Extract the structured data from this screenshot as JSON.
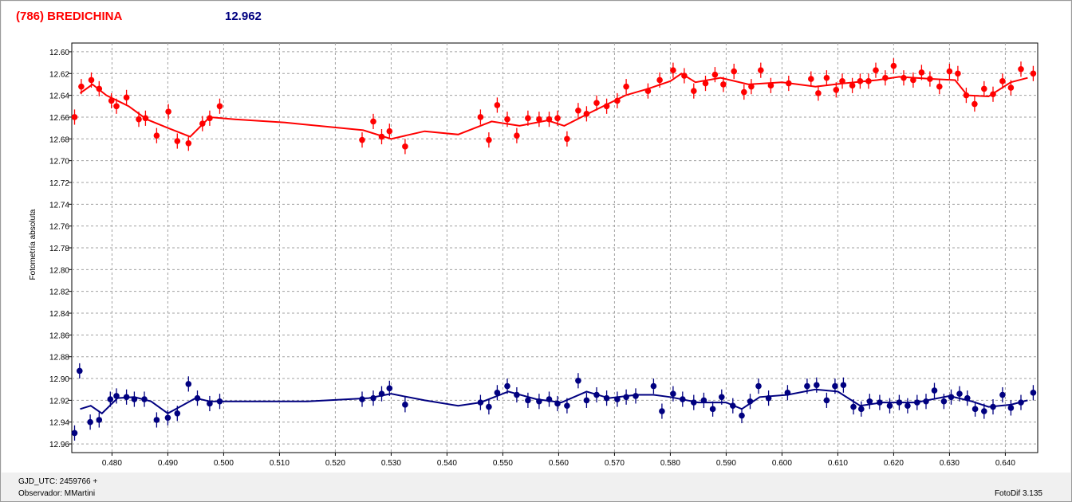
{
  "header": {
    "title": "(786) BREDICHINA",
    "value": "12.962"
  },
  "footer": {
    "gjd_label": "GJD_UTC: 2459766 +",
    "observer_label": "Observador: MMartini",
    "software": "FotoDif 3.135"
  },
  "colors": {
    "series_red": "#ff0000",
    "series_blue": "#000080",
    "grid": "#a0a0a0"
  },
  "chart_data": {
    "type": "scatter",
    "title": "(786) BREDICHINA",
    "xlabel": "",
    "ylabel": "Fotometría absoluta",
    "xlim": [
      0.4728,
      0.6458
    ],
    "ylim": [
      12.968,
      12.592
    ],
    "y_inverted": true,
    "grid": true,
    "xticks": [
      0.48,
      0.49,
      0.5,
      0.51,
      0.52,
      0.53,
      0.54,
      0.55,
      0.56,
      0.57,
      0.58,
      0.59,
      0.6,
      0.61,
      0.62,
      0.63,
      0.64
    ],
    "xtick_labels": [
      "0.480",
      "0.490",
      "0.500",
      "0.510",
      "0.520",
      "0.530",
      "0.540",
      "0.550",
      "0.560",
      "0.570",
      "0.580",
      "0.590",
      "0.600",
      "0.610",
      "0.620",
      "0.630",
      "0.640"
    ],
    "yticks": [
      12.6,
      12.62,
      12.64,
      12.66,
      12.68,
      12.7,
      12.72,
      12.74,
      12.76,
      12.78,
      12.8,
      12.82,
      12.84,
      12.86,
      12.88,
      12.9,
      12.92,
      12.94,
      12.96
    ],
    "ytick_labels": [
      "12.60",
      "12.62",
      "12.64",
      "12.66",
      "12.68",
      "12.70",
      "12.72",
      "12.74",
      "12.76",
      "12.78",
      "12.80",
      "12.82",
      "12.84",
      "12.86",
      "12.88",
      "12.90",
      "12.92",
      "12.94",
      "12.96"
    ],
    "error_bar": 0.007,
    "series": [
      {
        "color": "#ff0000",
        "points": [
          [
            0.4733,
            12.66
          ],
          [
            0.4745,
            12.632
          ],
          [
            0.4763,
            12.626
          ],
          [
            0.4777,
            12.634
          ],
          [
            0.4799,
            12.645
          ],
          [
            0.4808,
            12.65
          ],
          [
            0.4826,
            12.642
          ],
          [
            0.4848,
            12.662
          ],
          [
            0.486,
            12.661
          ],
          [
            0.488,
            12.677
          ],
          [
            0.4901,
            12.655
          ],
          [
            0.4917,
            12.682
          ],
          [
            0.4937,
            12.684
          ],
          [
            0.4962,
            12.666
          ],
          [
            0.4975,
            12.661
          ],
          [
            0.4993,
            12.65
          ],
          [
            0.5248,
            12.681
          ],
          [
            0.5268,
            12.664
          ],
          [
            0.5283,
            12.678
          ],
          [
            0.5297,
            12.673
          ],
          [
            0.5325,
            12.687
          ],
          [
            0.546,
            12.66
          ],
          [
            0.5475,
            12.681
          ],
          [
            0.549,
            12.649
          ],
          [
            0.5508,
            12.662
          ],
          [
            0.5525,
            12.677
          ],
          [
            0.5545,
            12.661
          ],
          [
            0.5565,
            12.662
          ],
          [
            0.5583,
            12.662
          ],
          [
            0.5598,
            12.661
          ],
          [
            0.5615,
            12.68
          ],
          [
            0.5635,
            12.654
          ],
          [
            0.565,
            12.657
          ],
          [
            0.5668,
            12.647
          ],
          [
            0.5686,
            12.65
          ],
          [
            0.5705,
            12.645
          ],
          [
            0.5721,
            12.632
          ],
          [
            0.576,
            12.636
          ],
          [
            0.5781,
            12.626
          ],
          [
            0.5805,
            12.617
          ],
          [
            0.5825,
            12.622
          ],
          [
            0.5842,
            12.636
          ],
          [
            0.5863,
            12.629
          ],
          [
            0.588,
            12.621
          ],
          [
            0.5895,
            12.63
          ],
          [
            0.5914,
            12.618
          ],
          [
            0.5932,
            12.637
          ],
          [
            0.5945,
            12.632
          ],
          [
            0.5962,
            12.617
          ],
          [
            0.598,
            12.631
          ],
          [
            0.6012,
            12.629
          ],
          [
            0.6052,
            12.625
          ],
          [
            0.6065,
            12.638
          ],
          [
            0.608,
            12.624
          ],
          [
            0.6097,
            12.635
          ],
          [
            0.6108,
            12.627
          ],
          [
            0.6126,
            12.631
          ],
          [
            0.614,
            12.627
          ],
          [
            0.6155,
            12.627
          ],
          [
            0.6168,
            12.617
          ],
          [
            0.6185,
            12.624
          ],
          [
            0.62,
            12.613
          ],
          [
            0.6218,
            12.624
          ],
          [
            0.6235,
            12.626
          ],
          [
            0.625,
            12.619
          ],
          [
            0.6265,
            12.625
          ],
          [
            0.6282,
            12.632
          ],
          [
            0.63,
            12.618
          ],
          [
            0.6315,
            12.62
          ],
          [
            0.633,
            12.64
          ],
          [
            0.6345,
            12.648
          ],
          [
            0.6362,
            12.634
          ],
          [
            0.6378,
            12.639
          ],
          [
            0.6395,
            12.627
          ],
          [
            0.641,
            12.633
          ],
          [
            0.6428,
            12.616
          ],
          [
            0.645,
            12.62
          ]
        ],
        "trend": [
          [
            0.4743,
            12.638
          ],
          [
            0.4765,
            12.63
          ],
          [
            0.479,
            12.64
          ],
          [
            0.483,
            12.65
          ],
          [
            0.4862,
            12.662
          ],
          [
            0.49,
            12.67
          ],
          [
            0.494,
            12.678
          ],
          [
            0.4975,
            12.66
          ],
          [
            0.502,
            12.662
          ],
          [
            0.511,
            12.665
          ],
          [
            0.525,
            12.672
          ],
          [
            0.53,
            12.68
          ],
          [
            0.536,
            12.673
          ],
          [
            0.542,
            12.676
          ],
          [
            0.548,
            12.664
          ],
          [
            0.553,
            12.668
          ],
          [
            0.558,
            12.663
          ],
          [
            0.561,
            12.668
          ],
          [
            0.566,
            12.655
          ],
          [
            0.572,
            12.64
          ],
          [
            0.576,
            12.634
          ],
          [
            0.58,
            12.627
          ],
          [
            0.582,
            12.62
          ],
          [
            0.5845,
            12.628
          ],
          [
            0.589,
            12.624
          ],
          [
            0.594,
            12.63
          ],
          [
            0.6,
            12.628
          ],
          [
            0.606,
            12.632
          ],
          [
            0.611,
            12.629
          ],
          [
            0.617,
            12.626
          ],
          [
            0.621,
            12.623
          ],
          [
            0.627,
            12.625
          ],
          [
            0.631,
            12.626
          ],
          [
            0.6332,
            12.64
          ],
          [
            0.637,
            12.641
          ],
          [
            0.641,
            12.628
          ],
          [
            0.644,
            12.624
          ]
        ]
      },
      {
        "color": "#000080",
        "points": [
          [
            0.4733,
            12.95
          ],
          [
            0.4742,
            12.893
          ],
          [
            0.4761,
            12.94
          ],
          [
            0.4777,
            12.938
          ],
          [
            0.4797,
            12.919
          ],
          [
            0.4808,
            12.916
          ],
          [
            0.4826,
            12.917
          ],
          [
            0.484,
            12.919
          ],
          [
            0.4858,
            12.919
          ],
          [
            0.488,
            12.938
          ],
          [
            0.49,
            12.936
          ],
          [
            0.4917,
            12.932
          ],
          [
            0.4937,
            12.905
          ],
          [
            0.4953,
            12.918
          ],
          [
            0.4975,
            12.923
          ],
          [
            0.4993,
            12.921
          ],
          [
            0.5248,
            12.919
          ],
          [
            0.5268,
            12.918
          ],
          [
            0.5283,
            12.914
          ],
          [
            0.5297,
            12.909
          ],
          [
            0.5325,
            12.924
          ],
          [
            0.546,
            12.922
          ],
          [
            0.5475,
            12.926
          ],
          [
            0.549,
            12.913
          ],
          [
            0.5508,
            12.907
          ],
          [
            0.5525,
            12.915
          ],
          [
            0.5545,
            12.92
          ],
          [
            0.5565,
            12.921
          ],
          [
            0.5583,
            12.919
          ],
          [
            0.5598,
            12.923
          ],
          [
            0.5615,
            12.925
          ],
          [
            0.5635,
            12.902
          ],
          [
            0.565,
            12.92
          ],
          [
            0.5668,
            12.915
          ],
          [
            0.5686,
            12.918
          ],
          [
            0.5705,
            12.919
          ],
          [
            0.5721,
            12.917
          ],
          [
            0.5738,
            12.916
          ],
          [
            0.577,
            12.907
          ],
          [
            0.5785,
            12.93
          ],
          [
            0.5805,
            12.914
          ],
          [
            0.5822,
            12.919
          ],
          [
            0.5842,
            12.922
          ],
          [
            0.586,
            12.92
          ],
          [
            0.5876,
            12.928
          ],
          [
            0.5892,
            12.917
          ],
          [
            0.5912,
            12.925
          ],
          [
            0.5928,
            12.934
          ],
          [
            0.5943,
            12.921
          ],
          [
            0.5958,
            12.907
          ],
          [
            0.5976,
            12.918
          ],
          [
            0.601,
            12.913
          ],
          [
            0.6045,
            12.907
          ],
          [
            0.6062,
            12.906
          ],
          [
            0.608,
            12.92
          ],
          [
            0.6095,
            12.907
          ],
          [
            0.611,
            12.906
          ],
          [
            0.6128,
            12.926
          ],
          [
            0.6142,
            12.928
          ],
          [
            0.6157,
            12.921
          ],
          [
            0.6175,
            12.922
          ],
          [
            0.6193,
            12.925
          ],
          [
            0.621,
            12.922
          ],
          [
            0.6225,
            12.925
          ],
          [
            0.6242,
            12.922
          ],
          [
            0.6258,
            12.921
          ],
          [
            0.6273,
            12.911
          ],
          [
            0.629,
            12.921
          ],
          [
            0.6303,
            12.917
          ],
          [
            0.6318,
            12.914
          ],
          [
            0.6332,
            12.918
          ],
          [
            0.6346,
            12.928
          ],
          [
            0.6362,
            12.93
          ],
          [
            0.6378,
            12.926
          ],
          [
            0.6395,
            12.915
          ],
          [
            0.641,
            12.927
          ],
          [
            0.6428,
            12.922
          ],
          [
            0.645,
            12.913
          ]
        ],
        "trend": [
          [
            0.4743,
            12.928
          ],
          [
            0.4762,
            12.925
          ],
          [
            0.4782,
            12.932
          ],
          [
            0.481,
            12.918
          ],
          [
            0.484,
            12.917
          ],
          [
            0.487,
            12.921
          ],
          [
            0.49,
            12.932
          ],
          [
            0.4925,
            12.925
          ],
          [
            0.495,
            12.918
          ],
          [
            0.4975,
            12.921
          ],
          [
            0.505,
            12.921
          ],
          [
            0.515,
            12.921
          ],
          [
            0.526,
            12.918
          ],
          [
            0.53,
            12.914
          ],
          [
            0.536,
            12.92
          ],
          [
            0.542,
            12.925
          ],
          [
            0.546,
            12.922
          ],
          [
            0.551,
            12.912
          ],
          [
            0.556,
            12.919
          ],
          [
            0.5605,
            12.922
          ],
          [
            0.565,
            12.912
          ],
          [
            0.569,
            12.918
          ],
          [
            0.574,
            12.915
          ],
          [
            0.577,
            12.915
          ],
          [
            0.58,
            12.917
          ],
          [
            0.585,
            12.922
          ],
          [
            0.59,
            12.922
          ],
          [
            0.5928,
            12.928
          ],
          [
            0.596,
            12.917
          ],
          [
            0.601,
            12.915
          ],
          [
            0.606,
            12.91
          ],
          [
            0.61,
            12.912
          ],
          [
            0.614,
            12.925
          ],
          [
            0.618,
            12.922
          ],
          [
            0.624,
            12.922
          ],
          [
            0.63,
            12.916
          ],
          [
            0.634,
            12.921
          ],
          [
            0.637,
            12.926
          ],
          [
            0.641,
            12.924
          ],
          [
            0.644,
            12.92
          ]
        ]
      }
    ]
  }
}
